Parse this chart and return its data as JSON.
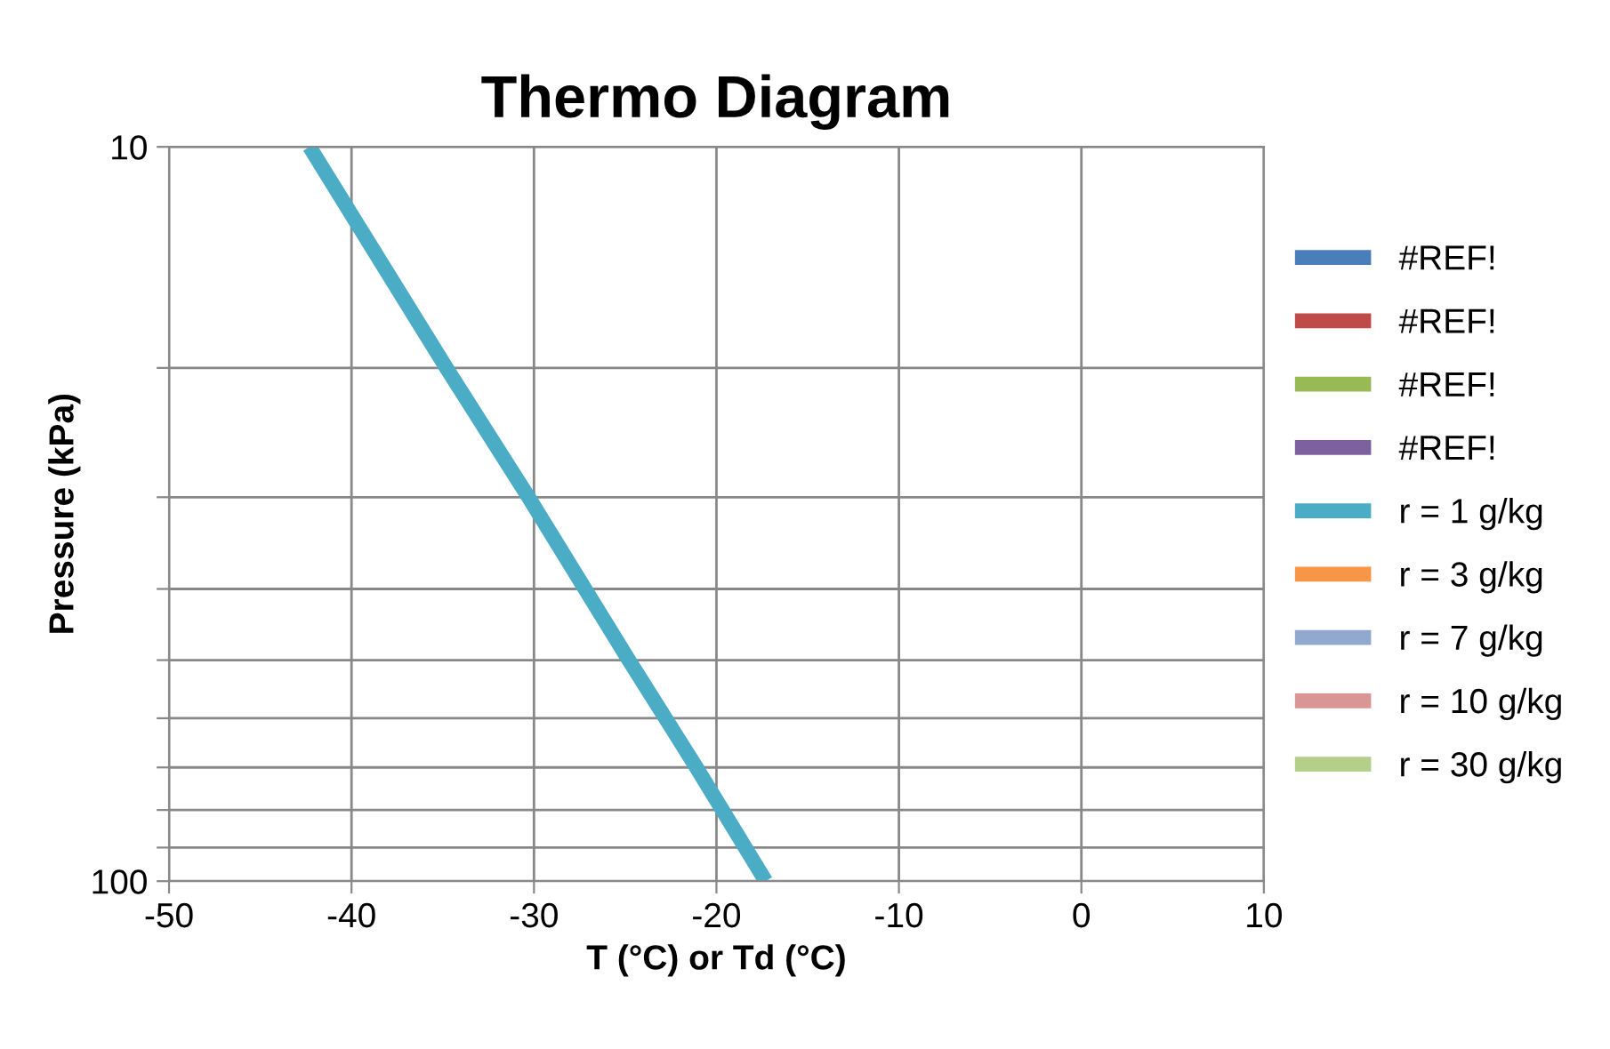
{
  "chart_data": {
    "type": "line",
    "title": "Thermo Diagram",
    "xlabel": "T (°C) or Td (°C)",
    "ylabel": "Pressure (kPa)",
    "series": [
      {
        "name": "#REF!",
        "color": "#4a7ebb"
      },
      {
        "name": "#REF!",
        "color": "#be4b48"
      },
      {
        "name": "#REF!",
        "color": "#98b954"
      },
      {
        "name": "#REF!",
        "color": "#7d60a0"
      },
      {
        "name": "r = 1 g/kg",
        "color": "#4bacc6",
        "x": [
          -42.3,
          -34.8,
          -30.3,
          -24.8,
          -21.1,
          -17.3
        ],
        "values": [
          10,
          20,
          30,
          50,
          70,
          100
        ]
      },
      {
        "name": "r = 3 g/kg",
        "color": "#f79646"
      },
      {
        "name": "r = 7 g/kg",
        "color": "#92a9cf"
      },
      {
        "name": "r = 10 g/kg",
        "color": "#d99694"
      },
      {
        "name": "r = 30 g/kg",
        "color": "#b3cf8a"
      }
    ],
    "xlim": [
      -50,
      10
    ],
    "xticks": [
      -50,
      -40,
      -30,
      -20,
      -10,
      0,
      10
    ],
    "log": "y",
    "ylim": [
      100,
      10
    ],
    "yticks": [
      10,
      {
        "value": 20,
        "label": null
      },
      {
        "value": 30,
        "label": null
      },
      {
        "value": 40,
        "label": null
      },
      {
        "value": 50,
        "label": null
      },
      {
        "value": 60,
        "label": null
      },
      {
        "value": 70,
        "label": null
      },
      {
        "value": 80,
        "label": null
      },
      {
        "value": 90,
        "label": null
      },
      100
    ],
    "grid": true,
    "legend": "right",
    "marker": "none",
    "line_style": "solid"
  }
}
